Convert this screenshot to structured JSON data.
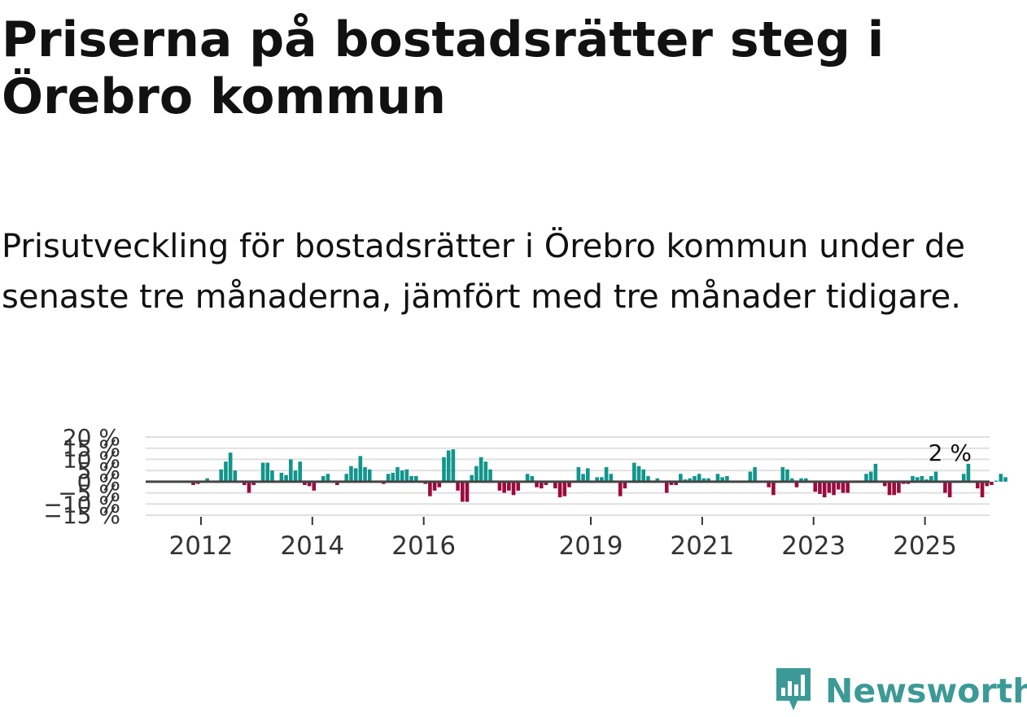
{
  "title": "Priserna på bostadsrätter steg i Örebro kommun",
  "subtitle": "Prisutveckling för bostadsrätter i Örebro kommun under de senaste tre månaderna, jämfört med tre månader tidigare.",
  "logo": {
    "text": "Newsworthy",
    "icon": "bar-chart-logo-icon"
  },
  "colors": {
    "positive": "#11958c",
    "negative": "#9b0a3e",
    "grid": "#e0e0e0",
    "zero_line": "#444444",
    "brand": "#3c9a96"
  },
  "chart_data": {
    "type": "bar",
    "title": "",
    "xlabel": "",
    "ylabel": "",
    "ylim": [
      -15,
      20
    ],
    "y_ticks": [
      {
        "value": 20,
        "label": "20 %"
      },
      {
        "value": 15,
        "label": "15 %"
      },
      {
        "value": 10,
        "label": "10 %"
      },
      {
        "value": 5,
        "label": "5 %"
      },
      {
        "value": 0,
        "label": "0 %"
      },
      {
        "value": -5,
        "label": "−5 %"
      },
      {
        "value": -10,
        "label": "−10 %"
      },
      {
        "value": -15,
        "label": "−15 %"
      }
    ],
    "x_ticks": [
      {
        "index": 12,
        "label": "2012"
      },
      {
        "index": 36,
        "label": "2014"
      },
      {
        "index": 60,
        "label": "2016"
      },
      {
        "index": 96,
        "label": "2019"
      },
      {
        "index": 120,
        "label": "2021"
      },
      {
        "index": 144,
        "label": "2023"
      },
      {
        "index": 168,
        "label": "2025"
      }
    ],
    "start": "2010-01",
    "end_label": "2 %",
    "values": [
      0,
      0,
      0,
      0,
      0,
      0,
      0,
      0,
      0,
      -0.5,
      -1.5,
      -1.0,
      0.5,
      1.5,
      0.5,
      0.5,
      5.5,
      9.0,
      13.0,
      5.0,
      0.5,
      -1.5,
      -5.0,
      -1.5,
      0.5,
      8.5,
      8.5,
      5.0,
      0.5,
      4.0,
      3.0,
      10.0,
      5.0,
      9.0,
      -1.5,
      -2.0,
      -4.0,
      0.5,
      2.5,
      3.5,
      0.5,
      -1.5,
      0.5,
      3.5,
      7.0,
      6.0,
      11.5,
      6.5,
      5.5,
      0.5,
      0.5,
      -1.0,
      3.5,
      4.0,
      6.5,
      5.0,
      5.5,
      2.5,
      2.5,
      0.5,
      -1.0,
      -6.5,
      -4.0,
      -2.5,
      11.0,
      14.0,
      14.5,
      -4.0,
      -9.0,
      -9.0,
      3.0,
      7.0,
      11.0,
      9.0,
      5.5,
      0.5,
      -4.0,
      -5.0,
      -4.0,
      -6.0,
      -4.0,
      0.5,
      3.5,
      2.5,
      -2.5,
      -3.0,
      -1.5,
      0.5,
      -3.0,
      -7.0,
      -6.5,
      -2.5,
      0.5,
      6.5,
      3.5,
      6.0,
      -0.5,
      2.0,
      2.0,
      6.5,
      3.5,
      0.5,
      -6.5,
      -3.0,
      0.5,
      8.5,
      7.0,
      5.5,
      2.5,
      0.5,
      1.5,
      0.5,
      -5.0,
      -1.5,
      -1.5,
      3.5,
      1.0,
      1.5,
      2.5,
      3.5,
      1.5,
      1.5,
      0.5,
      3.5,
      2.0,
      2.5,
      0.5,
      0.5,
      -0.5,
      0.5,
      4.5,
      6.5,
      0.5,
      0.5,
      -2.5,
      -6.0,
      0.5,
      6.5,
      5.5,
      1.5,
      -2.5,
      1.5,
      1.5,
      0.5,
      -4.5,
      -5.5,
      -7.0,
      -5.0,
      -6.0,
      -3.5,
      -5.0,
      -5.0,
      -0.5,
      -0.5,
      0.5,
      3.5,
      4.5,
      8.0,
      0.5,
      -2.0,
      -6.0,
      -6.0,
      -5.0,
      -1.0,
      -1.0,
      2.5,
      2.0,
      2.5,
      1.0,
      2.5,
      4.5,
      0.5,
      -5.0,
      -7.0,
      -0.5,
      0.5,
      3.5,
      8.0,
      0.5,
      -3.0,
      -7.0,
      -2.0,
      -1.5,
      0.5,
      3.5,
      2.0
    ]
  }
}
